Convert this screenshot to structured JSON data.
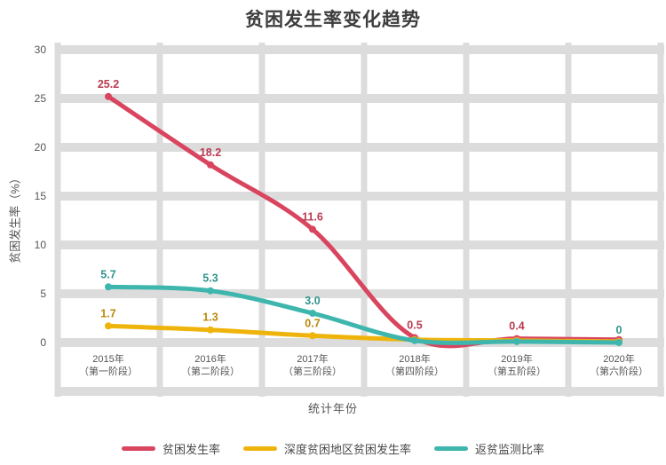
{
  "chart_data": {
    "type": "line",
    "title": "贫困发生率变化趋势",
    "xlabel": "统计年份",
    "ylabel": "贫困发生率（%）",
    "categories": [
      {
        "line1": "2015年",
        "line2": "（第一阶段）"
      },
      {
        "line1": "2016年",
        "line2": "（第二阶段）"
      },
      {
        "line1": "2017年",
        "line2": "（第三阶段）"
      },
      {
        "line1": "2018年",
        "line2": "（第四阶段）"
      },
      {
        "line1": "2019年",
        "line2": "（第五阶段）"
      },
      {
        "line1": "2020年",
        "line2": "（第六阶段）"
      }
    ],
    "yticks": [
      30,
      25,
      20,
      15,
      10,
      5,
      0
    ],
    "ylim": [
      -5,
      31.5
    ],
    "grid": true,
    "grid_color": "#DCDCDC",
    "background_color": "#FFFFFF",
    "text_color": "#4A4A4A",
    "legend_position": "bottom",
    "series": [
      {
        "name": "贫困发生率",
        "color": "#D9455F",
        "label_color": "#B93A50",
        "values": [
          25.2,
          18.2,
          11.6,
          0.5,
          0.4,
          0.3
        ],
        "point_labels": [
          "25.2",
          "18.2",
          "11.6",
          "0.5",
          "0.4",
          ""
        ]
      },
      {
        "name": "深度贫困地区贫困发生率",
        "color": "#EFB40B",
        "label_color": "#B8880A",
        "values": [
          1.7,
          1.3,
          0.7,
          0.3,
          0.2,
          0.1
        ],
        "point_labels": [
          "1.7",
          "1.3",
          "0.7",
          "",
          "",
          ""
        ]
      },
      {
        "name": "返贫监测比率",
        "color": "#3EB6AD",
        "label_color": "#2E958D",
        "values": [
          5.7,
          5.3,
          3.0,
          0.2,
          0.1,
          0.0
        ],
        "point_labels": [
          "5.7",
          "5.3",
          "3.0",
          "",
          "",
          "0"
        ]
      }
    ]
  }
}
